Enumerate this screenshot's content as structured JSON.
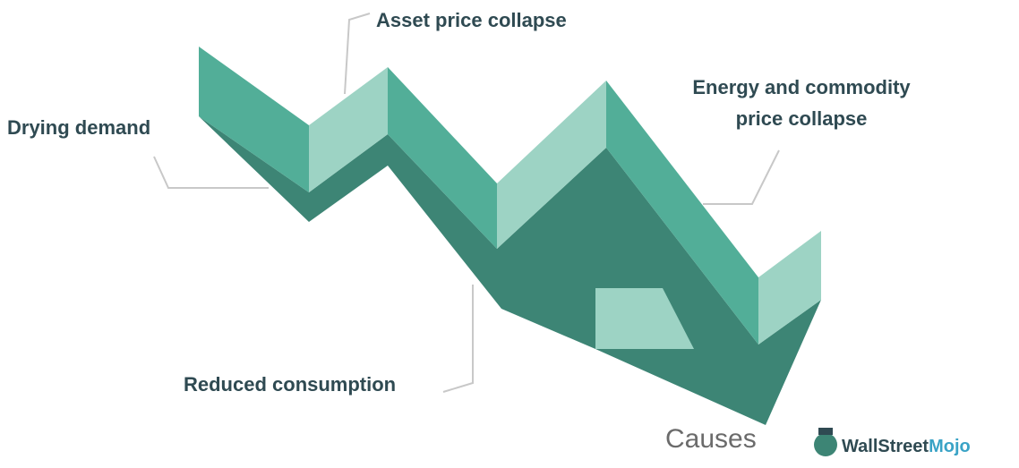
{
  "labels": {
    "drying": "Drying demand",
    "asset": "Asset price collapse",
    "energy": [
      "Energy and commodity",
      "price collapse"
    ],
    "reduced": "Reduced consumption"
  },
  "title": "Causes",
  "logo": {
    "part1": "WallStreet",
    "part2": "Mojo"
  }
}
